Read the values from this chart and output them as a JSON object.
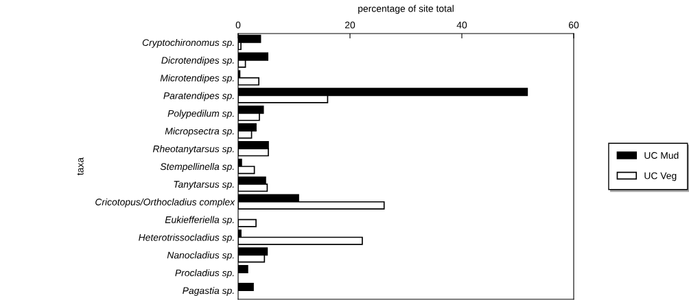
{
  "chart_data": {
    "type": "bar",
    "orientation": "horizontal",
    "xlabel": "percentage of site total",
    "ylabel": "taxa",
    "categories": [
      "Cryptochironomus sp.",
      "Dicrotendipes sp.",
      "Microtendipes sp.",
      "Paratendipes sp.",
      "Polypedilum sp.",
      "Micropsectra sp.",
      "Rheotanytarsus sp.",
      "Stempellinella sp.",
      "Tanytarsus sp.",
      "Cricotopus/Orthocladius complex",
      "Eukiefferiella sp.",
      "Heterotrissocladius sp.",
      "Nanocladius sp.",
      "Procladius sp.",
      "Pagastia sp."
    ],
    "series": [
      {
        "name": "UC Mud",
        "color": "#000000",
        "values": [
          4.0,
          5.3,
          0.3,
          51.7,
          4.5,
          3.2,
          5.4,
          0.6,
          4.9,
          10.8,
          0,
          0.5,
          5.2,
          1.7,
          2.7
        ]
      },
      {
        "name": "UC Veg",
        "color": "#ffffff",
        "values": [
          0.5,
          1.3,
          3.7,
          16,
          3.8,
          2.4,
          5.4,
          2.9,
          5.2,
          26.1,
          3.2,
          22.2,
          4.7,
          0,
          0
        ]
      }
    ],
    "xlim": [
      0,
      60
    ],
    "xticks": [
      0,
      20,
      40,
      60
    ],
    "grid": false,
    "legend": "right"
  }
}
